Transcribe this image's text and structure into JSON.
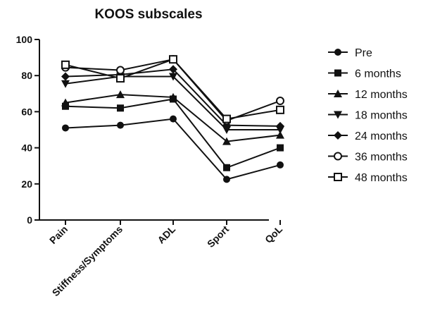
{
  "chart_data": {
    "type": "line",
    "title": "KOOS subscales",
    "xlabel": "",
    "ylabel": "",
    "categories": [
      "Pain",
      "Stiffness/Symptoms",
      "ADL",
      "Sport",
      "QoL"
    ],
    "ylim": [
      0,
      100
    ],
    "yticks": [
      0,
      20,
      40,
      60,
      80,
      100
    ],
    "grid": false,
    "legend_position": "right",
    "series": [
      {
        "name": "Pre",
        "marker": "circle",
        "values": [
          51,
          52.5,
          56,
          22.5,
          30.5
        ]
      },
      {
        "name": "6 months",
        "marker": "square",
        "values": [
          63,
          62,
          67,
          29,
          40
        ]
      },
      {
        "name": "12 months",
        "marker": "triangle-up",
        "values": [
          65,
          69.5,
          68,
          43.5,
          47
        ]
      },
      {
        "name": "18 months",
        "marker": "triangle-down",
        "values": [
          75.5,
          79.5,
          79.5,
          50,
          50
        ]
      },
      {
        "name": "24 months",
        "marker": "diamond",
        "values": [
          79.5,
          80.5,
          83.5,
          52.5,
          52
        ]
      },
      {
        "name": "36 months",
        "marker": "circle-open",
        "values": [
          84.5,
          83,
          89,
          55,
          66
        ]
      },
      {
        "name": "48 months",
        "marker": "square-open",
        "values": [
          86,
          78.5,
          89,
          56,
          61
        ]
      }
    ]
  }
}
